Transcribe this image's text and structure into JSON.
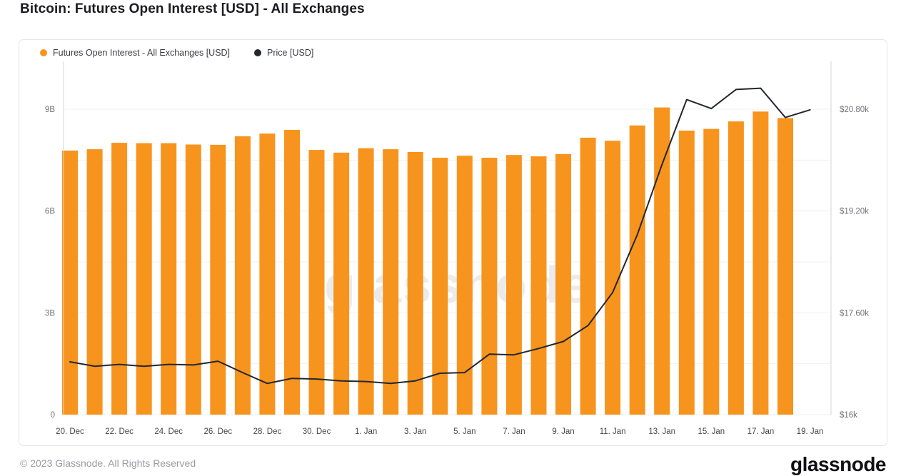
{
  "page": {
    "title": "Bitcoin: Futures Open Interest [USD] - All Exchanges",
    "watermark": "glassnode",
    "footer_copyright": "© 2023 Glassnode. All Rights Reserved",
    "brand_logo": "glassnode"
  },
  "legend": [
    {
      "label": "Futures Open Interest - All Exchanges [USD]",
      "color": "#F7941D"
    },
    {
      "label": "Price [USD]",
      "color": "#23262D"
    }
  ],
  "chart_data": {
    "type": "bar+line",
    "title": "Bitcoin: Futures Open Interest [USD] - All Exchanges",
    "grid": true,
    "legend_position": "top-left",
    "categories": [
      "20. Dec",
      "21. Dec",
      "22. Dec",
      "23. Dec",
      "24. Dec",
      "25. Dec",
      "26. Dec",
      "27. Dec",
      "28. Dec",
      "29. Dec",
      "30. Dec",
      "31. Dec",
      "1. Jan",
      "2. Jan",
      "3. Jan",
      "4. Jan",
      "5. Jan",
      "6. Jan",
      "7. Jan",
      "8. Jan",
      "9. Jan",
      "10. Jan",
      "11. Jan",
      "12. Jan",
      "13. Jan",
      "14. Jan",
      "15. Jan",
      "16. Jan",
      "17. Jan",
      "18. Jan",
      "19. Jan"
    ],
    "x_tick_labels": [
      "20. Dec",
      "22. Dec",
      "24. Dec",
      "26. Dec",
      "28. Dec",
      "30. Dec",
      "1. Jan",
      "3. Jan",
      "5. Jan",
      "7. Jan",
      "9. Jan",
      "11. Jan",
      "13. Jan",
      "15. Jan",
      "17. Jan",
      "19. Jan"
    ],
    "series": [
      {
        "name": "Futures Open Interest - All Exchanges [USD]",
        "type": "bar",
        "axis": "left",
        "unit": "billion USD",
        "color": "#F7941D",
        "values": [
          7.78,
          7.82,
          8.01,
          8.0,
          8.0,
          7.96,
          7.95,
          8.2,
          8.28,
          8.39,
          7.8,
          7.72,
          7.85,
          7.82,
          7.74,
          7.57,
          7.63,
          7.57,
          7.65,
          7.61,
          7.68,
          8.16,
          8.07,
          8.52,
          9.05,
          8.37,
          8.42,
          8.64,
          8.93,
          8.74,
          null
        ]
      },
      {
        "name": "Price [USD]",
        "type": "line",
        "axis": "right",
        "unit": "USD",
        "color": "#23262D",
        "values": [
          16830,
          16760,
          16790,
          16760,
          16790,
          16780,
          16840,
          16660,
          16490,
          16570,
          16560,
          16530,
          16520,
          16490,
          16530,
          16650,
          16660,
          16950,
          16940,
          17040,
          17150,
          17400,
          17920,
          18830,
          19930,
          20950,
          20810,
          21110,
          21130,
          20670,
          20790
        ]
      }
    ],
    "left_axis": {
      "title": "",
      "unit": "billion USD",
      "min": 0,
      "max": 10.4,
      "ticks": [
        {
          "label": "0",
          "value": 0
        },
        {
          "label": "3B",
          "value": 3
        },
        {
          "label": "6B",
          "value": 6
        },
        {
          "label": "9B",
          "value": 9
        }
      ]
    },
    "right_axis": {
      "title": "",
      "unit": "USD",
      "min": 16000,
      "max": 20800,
      "ticks": [
        {
          "label": "$16k",
          "value": 16000
        },
        {
          "label": "$17.60k",
          "value": 17600
        },
        {
          "label": "$19.20k",
          "value": 19200
        },
        {
          "label": "$20.80k",
          "value": 20800
        }
      ]
    }
  },
  "colors": {
    "bar": "#F7941D",
    "line": "#23262D",
    "gridline": "#f0f0f2",
    "axis_line": "#d6d6db",
    "tick_label": "#71717a",
    "x_tick_label": "#46464e"
  }
}
